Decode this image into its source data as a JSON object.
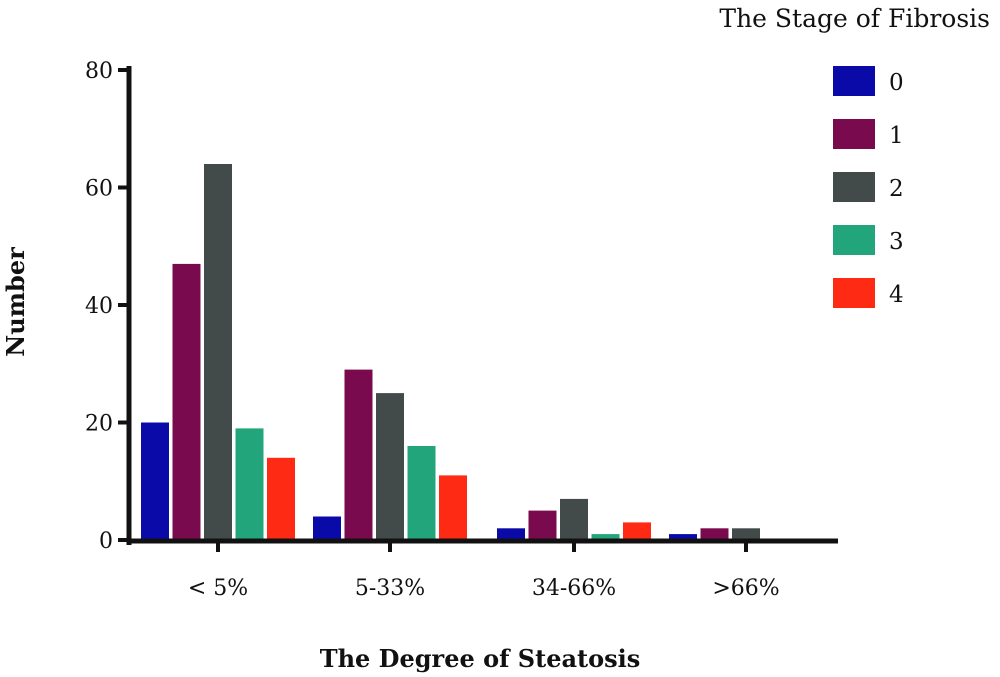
{
  "chart_data": {
    "type": "bar",
    "title": "",
    "xlabel": "The Degree of Steatosis",
    "ylabel": "Number",
    "ylim": [
      0,
      80
    ],
    "yticks": [
      0,
      20,
      40,
      60,
      80
    ],
    "categories": [
      "< 5%",
      "5-33%",
      "34-66%",
      ">66%"
    ],
    "legend": {
      "title": "The Stage of Fibrosis",
      "position": "top-right"
    },
    "series": [
      {
        "name": "0",
        "color": "#0a0aa8",
        "values": [
          20,
          4,
          2,
          1
        ]
      },
      {
        "name": "1",
        "color": "#7a0a4e",
        "values": [
          47,
          29,
          5,
          2
        ]
      },
      {
        "name": "2",
        "color": "#434a4a",
        "values": [
          64,
          25,
          7,
          2
        ]
      },
      {
        "name": "3",
        "color": "#22a57a",
        "values": [
          19,
          16,
          1,
          0
        ]
      },
      {
        "name": "4",
        "color": "#ff2a14",
        "values": [
          14,
          11,
          3,
          0
        ]
      }
    ],
    "grid": false
  }
}
